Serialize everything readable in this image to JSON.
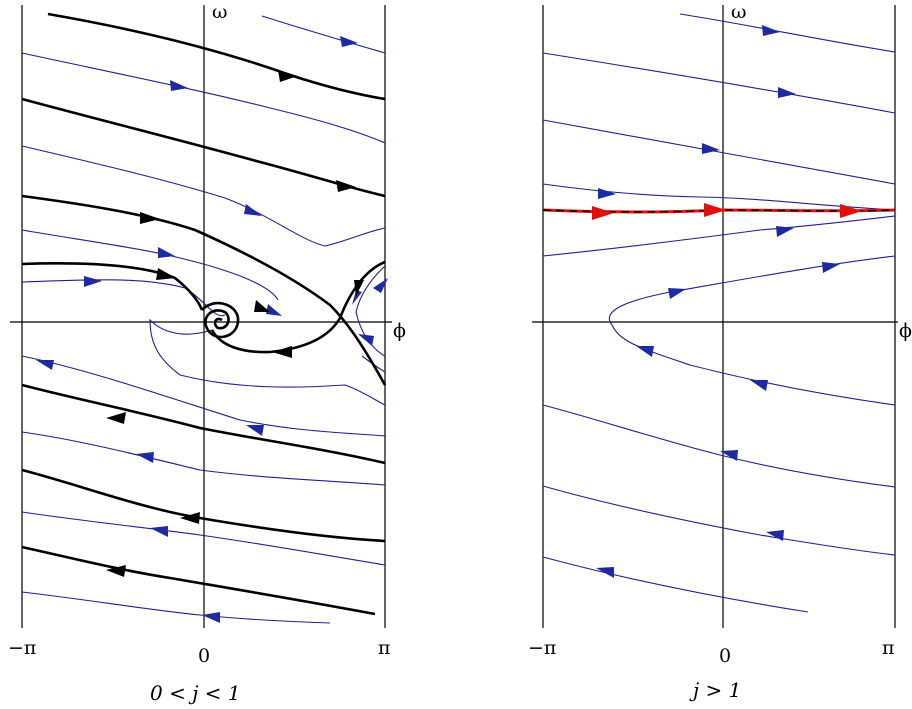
{
  "panels": [
    {
      "axis_labels": {
        "omega": "ω",
        "phi": "ϕ"
      },
      "ticks": [
        "−π",
        "0",
        "π"
      ],
      "caption": "0 < j < 1"
    },
    {
      "axis_labels": {
        "omega": "ω",
        "phi": "ϕ"
      },
      "ticks": [
        "−π",
        "0",
        "π"
      ],
      "caption": "j > 1"
    }
  ],
  "colors": {
    "trajectory_thin": "#1f1f8f",
    "arrow_blue": "#1e2aa0",
    "trajectory_thick": "#000000",
    "limit_cycle": "#e01010"
  }
}
